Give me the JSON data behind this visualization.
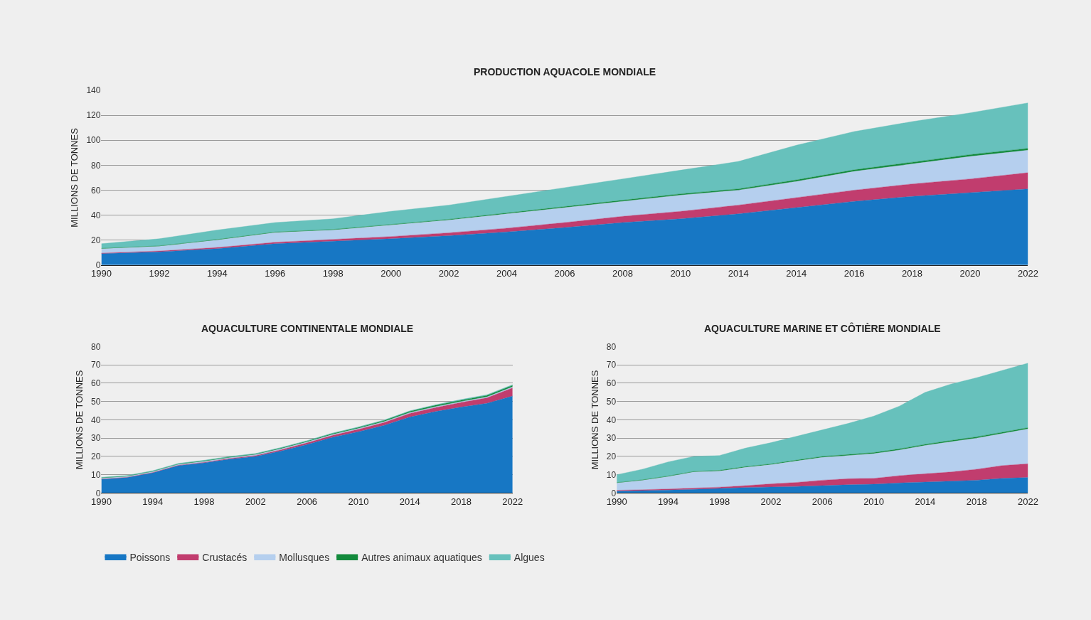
{
  "chart_data": [
    {
      "type": "area",
      "title": "PRODUCTION AQUACOLE MONDIALE",
      "ylabel": "MILLIONS DE TONNES",
      "stacked": true,
      "grid": "y",
      "legend": "bottom",
      "categories": [
        "1990",
        "1992",
        "1994",
        "1996",
        "1998",
        "2000",
        "2002",
        "2004",
        "2006",
        "2008",
        "2010",
        "2014",
        "2014",
        "2016",
        "2018",
        "2020",
        "2022"
      ],
      "ylim": [
        0,
        140
      ],
      "yticks": [
        0,
        20,
        40,
        60,
        80,
        100,
        120,
        140
      ],
      "series": [
        {
          "name": "Poissons",
          "color": "#1777c4",
          "values": [
            9,
            10.5,
            13,
            17,
            19,
            21,
            23.5,
            26.5,
            30,
            34,
            37,
            41,
            46,
            51,
            55,
            58,
            61
          ]
        },
        {
          "name": "Crustacés",
          "color": "#c13d6e",
          "values": [
            0.5,
            0.7,
            1,
            1.2,
            1.5,
            1.8,
            2.3,
            3,
            4,
            5,
            6,
            7,
            8,
            9,
            10,
            11,
            13
          ]
        },
        {
          "name": "Mollusques",
          "color": "#b5cfee",
          "values": [
            3.5,
            3.8,
            6,
            7.8,
            7.5,
            9.2,
            10.2,
            11.5,
            12,
            12,
            13,
            12,
            13,
            15,
            16,
            18,
            18
          ]
        },
        {
          "name": "Autres animaux aquatiques",
          "color": "#138a3c",
          "values": [
            0.3,
            0.3,
            0.4,
            0.4,
            0.5,
            0.5,
            0.6,
            0.7,
            0.8,
            0.9,
            1,
            1,
            1.2,
            1.3,
            1.4,
            1.5,
            1.5
          ]
        },
        {
          "name": "Algues",
          "color": "#67c1bc",
          "values": [
            3.7,
            5.7,
            7.6,
            7.6,
            8.5,
            10.5,
            11.4,
            13.3,
            15.2,
            17.1,
            19,
            22,
            27.8,
            30.7,
            32.6,
            33.5,
            36.5
          ]
        }
      ]
    },
    {
      "type": "area",
      "title": "AQUACULTURE CONTINENTALE MONDIALE",
      "ylabel": "MILLIONS DE TONNES",
      "stacked": true,
      "grid": "y",
      "x": [
        1990,
        1992,
        1994,
        1996,
        1998,
        2000,
        2002,
        2004,
        2006,
        2008,
        2010,
        2012,
        2014,
        2016,
        2018,
        2020,
        2022
      ],
      "xlim": [
        1990,
        2022
      ],
      "xticks": [
        1990,
        1994,
        1998,
        2002,
        2006,
        2010,
        2014,
        2018,
        2022
      ],
      "ylim": [
        0,
        80
      ],
      "yticks": [
        0,
        10,
        20,
        30,
        40,
        50,
        60,
        70,
        80
      ],
      "series": [
        {
          "color": "#1777c4",
          "values": [
            7.5,
            8.5,
            11,
            15,
            16.5,
            18.5,
            20,
            23,
            26.5,
            30.5,
            33.5,
            37,
            41.5,
            44.5,
            47,
            49,
            53
          ]
        },
        {
          "color": "#c13d6e",
          "values": [
            0.1,
            0.1,
            0.2,
            0.2,
            0.3,
            0.4,
            0.5,
            0.7,
            0.9,
            1,
            1.3,
            1.5,
            2,
            2.2,
            2.5,
            3,
            4.5
          ]
        },
        {
          "color": "#b5cfee",
          "values": [
            0.5,
            0.5,
            0.5,
            0.5,
            0.5,
            0.5,
            0.5,
            0.5,
            0.5,
            0.5,
            0.5,
            0.5,
            0.5,
            0.5,
            0.5,
            0.5,
            0.5
          ]
        },
        {
          "color": "#138a3c",
          "values": [
            0.2,
            0.2,
            0.2,
            0.2,
            0.3,
            0.3,
            0.3,
            0.4,
            0.4,
            0.5,
            0.5,
            0.6,
            0.6,
            0.7,
            0.7,
            0.8,
            0.8
          ]
        },
        {
          "color": "#67c1bc",
          "values": [
            0.3,
            0.3,
            0.3,
            0.3,
            0.3,
            0.3,
            0.3,
            0.3,
            0.3,
            0.3,
            0.3,
            0.3,
            0.3,
            0.3,
            0.4,
            0.4,
            0.4
          ]
        }
      ]
    },
    {
      "type": "area",
      "title": "AQUACULTURE MARINE ET CÔTIÈRE MONDIALE",
      "ylabel": "MILLIONS DE TONNES",
      "stacked": true,
      "grid": "y",
      "x": [
        1990,
        1992,
        1994,
        1996,
        1998,
        2000,
        2002,
        2004,
        2006,
        2008,
        2010,
        2012,
        2014,
        2016,
        2018,
        2020,
        2022
      ],
      "xlim": [
        1990,
        2022
      ],
      "xticks": [
        1990,
        1994,
        1998,
        2002,
        2006,
        2010,
        2014,
        2018,
        2022
      ],
      "ylim": [
        0,
        80
      ],
      "yticks": [
        0,
        10,
        20,
        30,
        40,
        50,
        60,
        70,
        80
      ],
      "series": [
        {
          "color": "#1777c4",
          "values": [
            1,
            1.3,
            1.6,
            2,
            2.5,
            3,
            3.3,
            3.6,
            4,
            4.5,
            4.8,
            5.5,
            6,
            6.5,
            7,
            8,
            8.5
          ]
        },
        {
          "color": "#c13d6e",
          "values": [
            0.5,
            0.5,
            0.6,
            0.7,
            0.7,
            1,
            1.7,
            2.2,
            3,
            3.3,
            3.2,
            4,
            4.5,
            5,
            6,
            7,
            7.5
          ]
        },
        {
          "color": "#b5cfee",
          "values": [
            4,
            5.2,
            6.8,
            8.8,
            8.8,
            10,
            10.5,
            11.7,
            12.5,
            12.7,
            13.5,
            14,
            15.5,
            16.5,
            17,
            17.5,
            19
          ]
        },
        {
          "color": "#138a3c",
          "values": [
            0.2,
            0.2,
            0.3,
            0.3,
            0.4,
            0.4,
            0.4,
            0.5,
            0.5,
            0.5,
            0.6,
            0.6,
            0.6,
            0.7,
            0.7,
            0.7,
            0.7
          ]
        },
        {
          "color": "#67c1bc",
          "values": [
            4.3,
            5.8,
            7.7,
            8.2,
            8.1,
            10.1,
            11.6,
            13,
            14.5,
            17,
            19.9,
            23.4,
            28.4,
            30.8,
            32.3,
            33.8,
            35.3
          ]
        }
      ]
    }
  ]
}
